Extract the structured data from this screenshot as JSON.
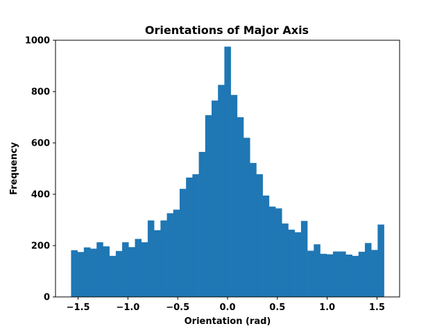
{
  "chart_data": {
    "type": "bar",
    "title": "Orientations of Major Axis",
    "xlabel": "Orientation (rad)",
    "ylabel": "Frequency",
    "xlim": [
      -1.727,
      1.727
    ],
    "ylim": [
      0,
      1000
    ],
    "xticks": [
      -1.5,
      -1.0,
      -0.5,
      0.0,
      0.5,
      1.0,
      1.5
    ],
    "xtick_labels": [
      "−1.5",
      "−1.0",
      "−0.5",
      "0.0",
      "0.5",
      "1.0",
      "1.5"
    ],
    "yticks": [
      0,
      200,
      400,
      600,
      800,
      1000
    ],
    "ytick_labels": [
      "0",
      "200",
      "400",
      "600",
      "800",
      "1000"
    ],
    "bin_range": [
      -1.5708,
      1.5708
    ],
    "bar_color": "#1f77b4",
    "grid": false,
    "values": [
      182,
      175,
      193,
      188,
      213,
      197,
      160,
      179,
      213,
      194,
      226,
      213,
      298,
      260,
      298,
      326,
      340,
      421,
      465,
      478,
      565,
      708,
      765,
      826,
      975,
      787,
      700,
      620,
      522,
      478,
      395,
      352,
      345,
      286,
      262,
      252,
      296,
      180,
      205,
      168,
      166,
      177,
      177,
      165,
      160,
      176,
      210,
      183,
      282
    ]
  }
}
